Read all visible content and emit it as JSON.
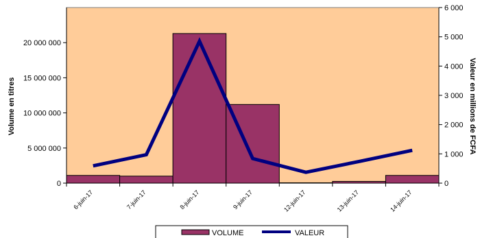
{
  "chart_data": {
    "type": "bar",
    "title": "",
    "categories": [
      "6-juin-17",
      "7-juin-17",
      "8-juin-17",
      "9-juin-17",
      "12-juin-17",
      "13-juin-17",
      "14-juin-17"
    ],
    "series": [
      {
        "name": "VOLUME",
        "type": "bar",
        "axis": "left",
        "color": "#993366",
        "values": [
          1100000,
          1000000,
          21300000,
          11200000,
          50000,
          250000,
          1100000
        ]
      },
      {
        "name": "VALEUR",
        "type": "line",
        "axis": "right",
        "color": "#000080",
        "values": [
          590,
          970,
          4850,
          840,
          370,
          740,
          1120
        ]
      }
    ],
    "y_left": {
      "label": "Volume en titres",
      "range": [
        0,
        25000000
      ],
      "ticks": [
        0,
        5000000,
        10000000,
        15000000,
        20000000
      ],
      "tick_labels": [
        "0",
        "5 000 000",
        "10 000 000",
        "15 000 000",
        "20 000 000"
      ]
    },
    "y_right": {
      "label": "Valeur en millions de FCFA",
      "range": [
        0,
        6000
      ],
      "ticks": [
        0,
        1000,
        2000,
        3000,
        4000,
        5000,
        6000
      ],
      "tick_labels": [
        "0",
        "1 000",
        "2 000",
        "3 000",
        "4 000",
        "5 000",
        "6 000"
      ]
    },
    "background_color": "#FFCC99",
    "grid": false,
    "legend": "bottom-center"
  }
}
